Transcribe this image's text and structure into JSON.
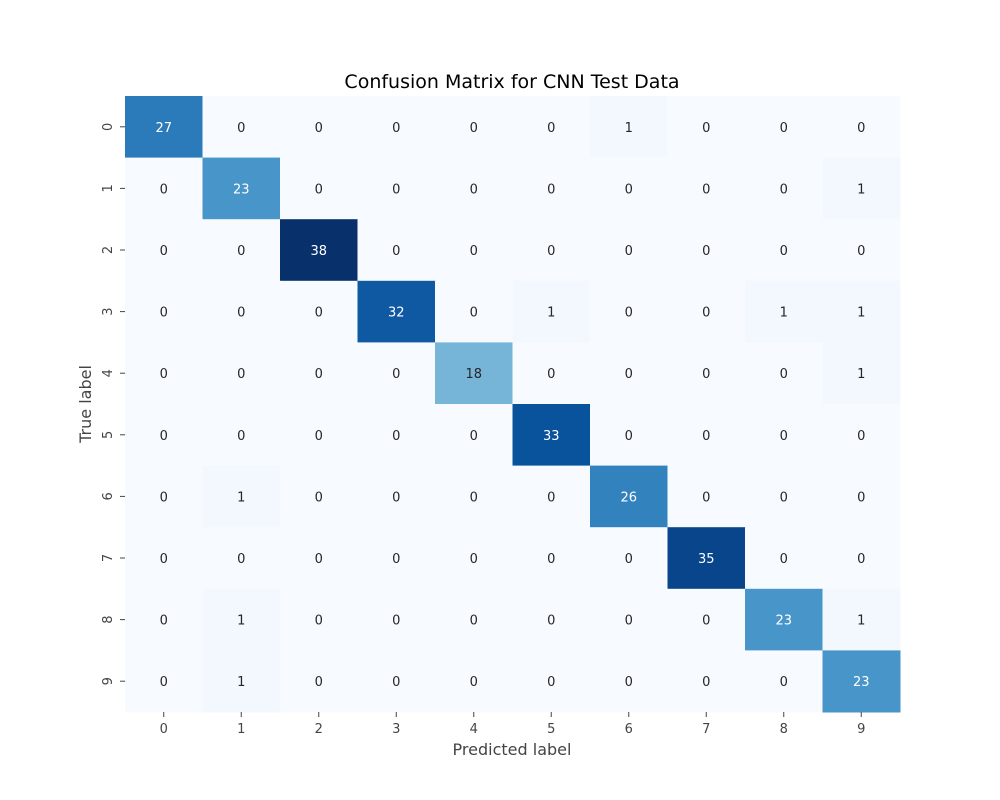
{
  "chart_data": {
    "type": "heatmap",
    "title": "Confusion Matrix for CNN Test Data",
    "xlabel": "Predicted label",
    "ylabel": "True label",
    "x_categories": [
      "0",
      "1",
      "2",
      "3",
      "4",
      "5",
      "6",
      "7",
      "8",
      "9"
    ],
    "y_categories": [
      "0",
      "1",
      "2",
      "3",
      "4",
      "5",
      "6",
      "7",
      "8",
      "9"
    ],
    "values": [
      [
        27,
        0,
        0,
        0,
        0,
        0,
        1,
        0,
        0,
        0
      ],
      [
        0,
        23,
        0,
        0,
        0,
        0,
        0,
        0,
        0,
        1
      ],
      [
        0,
        0,
        38,
        0,
        0,
        0,
        0,
        0,
        0,
        0
      ],
      [
        0,
        0,
        0,
        32,
        0,
        1,
        0,
        0,
        1,
        1
      ],
      [
        0,
        0,
        0,
        0,
        18,
        0,
        0,
        0,
        0,
        1
      ],
      [
        0,
        0,
        0,
        0,
        0,
        33,
        0,
        0,
        0,
        0
      ],
      [
        0,
        1,
        0,
        0,
        0,
        0,
        26,
        0,
        0,
        0
      ],
      [
        0,
        0,
        0,
        0,
        0,
        0,
        0,
        35,
        0,
        0
      ],
      [
        0,
        1,
        0,
        0,
        0,
        0,
        0,
        0,
        23,
        1
      ],
      [
        0,
        1,
        0,
        0,
        0,
        0,
        0,
        0,
        0,
        23
      ]
    ],
    "colormap": "Blues",
    "color_range": [
      0,
      38
    ],
    "colorbar": false,
    "grid": false,
    "legend": "none"
  }
}
